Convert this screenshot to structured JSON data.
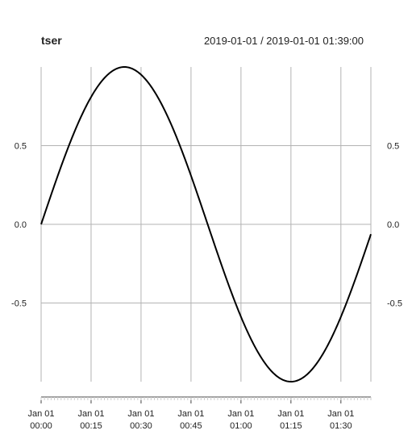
{
  "chart_data": {
    "type": "line",
    "title": "tser",
    "subtitle": "2019-01-01 / 2019-01-01 01:39:00",
    "xlabel": "",
    "ylabel": "",
    "x_start": "2019-01-01 00:00:00",
    "x_end": "2019-01-01 01:39:00",
    "ylim": [
      -1,
      1
    ],
    "grid": true,
    "x_ticks": [
      {
        "time": "00:00",
        "label_top": "Jan 01",
        "label_bottom": "00:00"
      },
      {
        "time": "00:15",
        "label_top": "Jan 01",
        "label_bottom": "00:15"
      },
      {
        "time": "00:30",
        "label_top": "Jan 01",
        "label_bottom": "00:30"
      },
      {
        "time": "00:45",
        "label_top": "Jan 01",
        "label_bottom": "00:45"
      },
      {
        "time": "01:00",
        "label_top": "Jan 01",
        "label_bottom": "01:00"
      },
      {
        "time": "01:15",
        "label_top": "Jan 01",
        "label_bottom": "01:15"
      },
      {
        "time": "01:30",
        "label_top": "Jan 01",
        "label_bottom": "01:30"
      }
    ],
    "y_ticks": [
      {
        "value": 0.5,
        "label": "0.5"
      },
      {
        "value": 0.0,
        "label": "0.0"
      },
      {
        "value": -0.5,
        "label": "-0.5"
      }
    ],
    "series": [
      {
        "color": "#000000",
        "x": [
          "00:00",
          "00:05",
          "00:10",
          "00:15",
          "00:20",
          "00:25",
          "00:30",
          "00:35",
          "00:40",
          "00:45",
          "00:50",
          "00:55",
          "01:00",
          "01:05",
          "01:10",
          "01:15",
          "01:20",
          "01:25",
          "01:30",
          "01:35",
          "01:39"
        ],
        "values": [
          0.0,
          0.31,
          0.59,
          0.81,
          0.95,
          1.0,
          0.95,
          0.81,
          0.59,
          0.31,
          0.0,
          -0.31,
          -0.59,
          -0.81,
          -0.95,
          -1.0,
          -0.95,
          -0.81,
          -0.59,
          -0.31,
          -0.06
        ]
      }
    ]
  }
}
